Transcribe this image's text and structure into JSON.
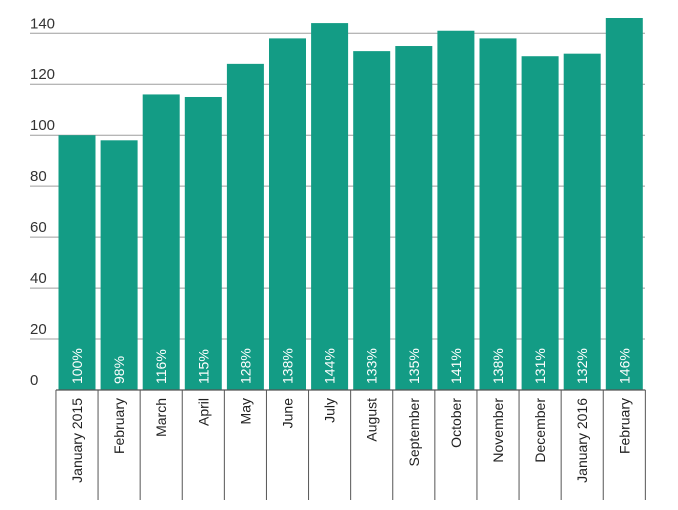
{
  "chart_data": {
    "type": "bar",
    "categories": [
      "January 2015",
      "February",
      "March",
      "April",
      "May",
      "June",
      "July",
      "August",
      "September",
      "October",
      "November",
      "December",
      "January 2016",
      "February"
    ],
    "values": [
      100,
      98,
      116,
      115,
      128,
      138,
      144,
      133,
      135,
      141,
      138,
      131,
      132,
      146
    ],
    "data_labels": [
      "100%",
      "98%",
      "116%",
      "115%",
      "128%",
      "138%",
      "144%",
      "133%",
      "135%",
      "141%",
      "138%",
      "131%",
      "132%",
      "146%"
    ],
    "y_ticks": [
      0,
      20,
      40,
      60,
      80,
      100,
      120,
      140
    ],
    "ylim": [
      0,
      146
    ],
    "grid": true,
    "legend": "none",
    "bar_color": "#139c85"
  }
}
